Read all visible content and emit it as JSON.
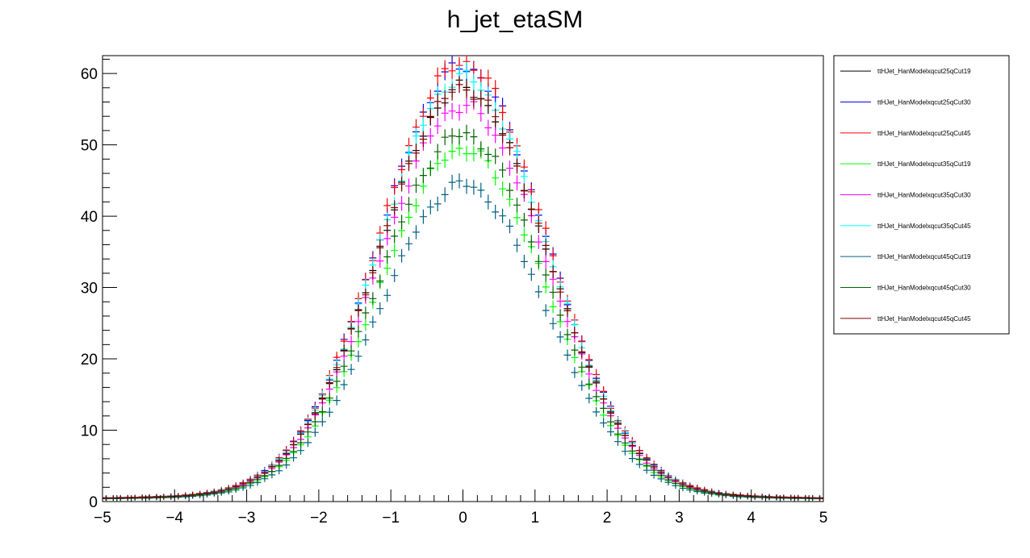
{
  "chart_data": {
    "type": "scatter",
    "title": "h_jet_etaSM",
    "xlabel": "",
    "ylabel": "",
    "xlim": [
      -5,
      5
    ],
    "ylim": [
      0,
      62.5
    ],
    "xticks": [
      "-5",
      "-4",
      "-3",
      "-2",
      "-1",
      "0",
      "1",
      "2",
      "3",
      "4",
      "5"
    ],
    "yticks": [
      "0",
      "10",
      "20",
      "30",
      "40",
      "50",
      "60"
    ],
    "grid": false,
    "legend_position": "right",
    "bin_width": 0.1,
    "series": [
      {
        "name": "ttHJet_HanModelxqcut25qCut19",
        "color": "#000000",
        "peak": 58.0
      },
      {
        "name": "ttHJet_HanModelxqcut25qCut30",
        "color": "#0000ff",
        "peak": 61.0
      },
      {
        "name": "ttHJet_HanModelxqcut25qCut45",
        "color": "#ff0000",
        "peak": 61.5
      },
      {
        "name": "ttHJet_HanModelxqcut35qCut19",
        "color": "#00ff00",
        "peak": 49.5
      },
      {
        "name": "ttHJet_HanModelxqcut35qCut30",
        "color": "#ff00ff",
        "peak": 55.5
      },
      {
        "name": "ttHJet_HanModelxqcut35qCut45",
        "color": "#00ffff",
        "peak": 59.5
      },
      {
        "name": "ttHJet_HanModelxqcut45qCut19",
        "color": "#006080",
        "peak": 44.5
      },
      {
        "name": "ttHJet_HanModelxqcut45qCut30",
        "color": "#006400",
        "peak": 51.5
      },
      {
        "name": "ttHJet_HanModelxqcut45qCut45",
        "color": "#800000",
        "peak": 58.0
      }
    ]
  }
}
